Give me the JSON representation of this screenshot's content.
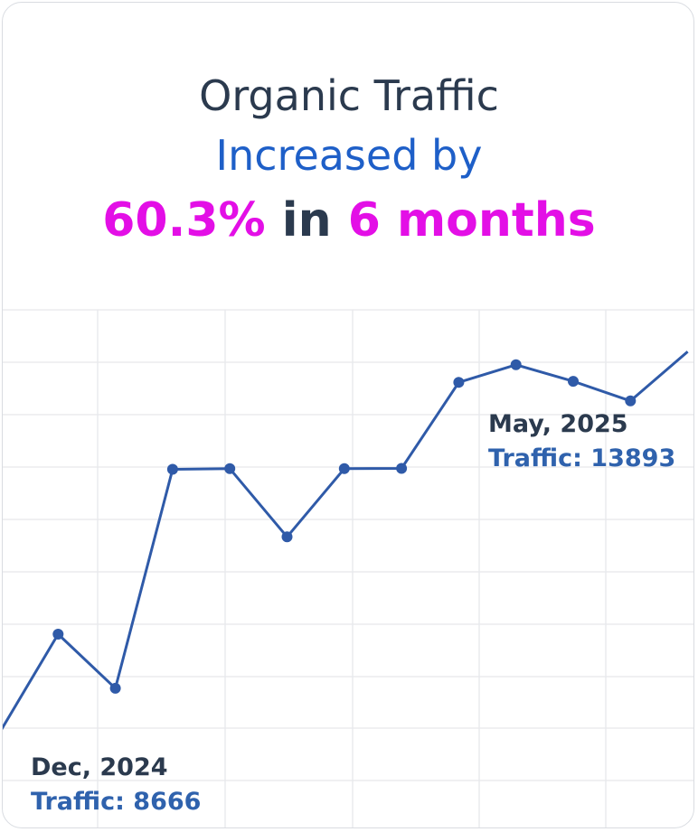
{
  "headline": {
    "line1": "Organic Traffic",
    "line2": "Increased by",
    "percent": "60.3%",
    "connector": "in",
    "duration": "6 months"
  },
  "colors": {
    "title_dark": "#2b3a4e",
    "title_blue": "#1e5fc8",
    "highlight": "#e30fe6",
    "series_line": "#2f5aa8",
    "grid": "#e6e8eb"
  },
  "chart_data": {
    "type": "line",
    "series": [
      {
        "values": [
          7900,
          9650,
          8666,
          12650,
          12660,
          11420,
          12660,
          12665,
          14230,
          14550,
          14250,
          13893,
          14790
        ]
      }
    ],
    "ylim": [
      6100,
      15550
    ],
    "grid": true,
    "annotations": [
      {
        "date": "Dec, 2024",
        "traffic": "Traffic: 8666"
      },
      {
        "date": "May, 2025",
        "traffic": "Traffic: 13893"
      }
    ]
  }
}
